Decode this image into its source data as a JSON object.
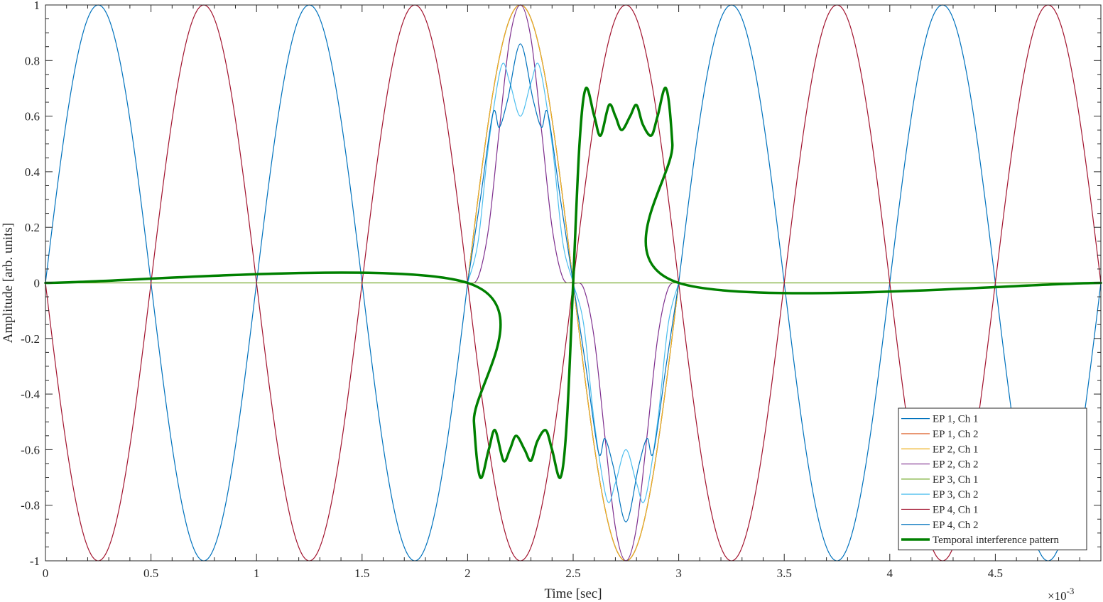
{
  "chart_data": {
    "type": "line",
    "title": "",
    "xlabel": "Time [sec]",
    "ylabel": "Amplitude [arb. units]",
    "x_exponent_label": "×10",
    "x_exponent_power": "-3",
    "xlim": [
      0,
      5
    ],
    "ylim": [
      -1,
      1
    ],
    "xticks": [
      0,
      0.5,
      1,
      1.5,
      2,
      2.5,
      3,
      3.5,
      4,
      4.5
    ],
    "xtick_labels": [
      "0",
      "0.5",
      "1",
      "1.5",
      "2",
      "2.5",
      "3",
      "3.5",
      "4",
      "4.5"
    ],
    "yticks": [
      -1,
      -0.8,
      -0.6,
      -0.4,
      -0.2,
      0,
      0.2,
      0.4,
      0.6,
      0.8,
      1
    ],
    "ytick_labels": [
      "-1",
      "-0.8",
      "-0.6",
      "-0.4",
      "-0.2",
      "0",
      "0.2",
      "0.4",
      "0.6",
      "0.8",
      "1"
    ],
    "grid": false,
    "legend_position": "bottom-right",
    "x_unit_scale": 0.001,
    "series": [
      {
        "name": "EP 1, Ch 1",
        "color": "#0072BD",
        "width": 1.2,
        "description": "sin(2*pi*1000*t)",
        "points": [
          [
            0,
            0
          ],
          [
            0.25,
            1
          ],
          [
            0.5,
            0
          ],
          [
            0.75,
            -1
          ],
          [
            1,
            0
          ],
          [
            1.25,
            1
          ],
          [
            1.5,
            0
          ],
          [
            1.75,
            -1
          ],
          [
            2,
            0
          ],
          [
            2.25,
            1
          ],
          [
            2.5,
            0
          ],
          [
            2.75,
            -1
          ],
          [
            3,
            0
          ],
          [
            3.25,
            1
          ],
          [
            3.5,
            0
          ],
          [
            3.75,
            -1
          ],
          [
            4,
            0
          ],
          [
            4.25,
            1
          ],
          [
            4.5,
            0
          ],
          [
            4.75,
            -1
          ],
          [
            5,
            0
          ]
        ]
      },
      {
        "name": "EP 1, Ch 2",
        "color": "#D95319",
        "width": 1.2,
        "points": [
          [
            2,
            0
          ],
          [
            2.25,
            1
          ],
          [
            2.5,
            0
          ],
          [
            2.75,
            -1
          ],
          [
            3,
            0
          ]
        ]
      },
      {
        "name": "EP 2, Ch 1",
        "color": "#EDB120",
        "width": 1.2,
        "points": [
          [
            2,
            0
          ],
          [
            2.25,
            1
          ],
          [
            2.5,
            0
          ],
          [
            2.75,
            -1
          ],
          [
            3,
            0
          ]
        ]
      },
      {
        "name": "EP 2, Ch 2",
        "color": "#7E2F8E",
        "width": 1.2,
        "points": [
          [
            2,
            0
          ],
          [
            2.05,
            0.02
          ],
          [
            2.1,
            0.2
          ],
          [
            2.15,
            0.55
          ],
          [
            2.2,
            0.88
          ],
          [
            2.25,
            1
          ],
          [
            2.3,
            0.88
          ],
          [
            2.35,
            0.55
          ],
          [
            2.4,
            0.2
          ],
          [
            2.45,
            0.02
          ],
          [
            2.5,
            0
          ],
          [
            2.55,
            -0.02
          ],
          [
            2.6,
            -0.2
          ],
          [
            2.65,
            -0.55
          ],
          [
            2.7,
            -0.88
          ],
          [
            2.75,
            -1
          ],
          [
            2.8,
            -0.88
          ],
          [
            2.85,
            -0.55
          ],
          [
            2.9,
            -0.2
          ],
          [
            2.95,
            -0.02
          ],
          [
            3,
            0
          ]
        ]
      },
      {
        "name": "EP 3, Ch 1",
        "color": "#77AC30",
        "width": 1.2,
        "points": [
          [
            0,
            0
          ],
          [
            5,
            0
          ]
        ]
      },
      {
        "name": "EP 3, Ch 2",
        "color": "#4DBEEE",
        "width": 1.2,
        "points": [
          [
            2,
            0
          ],
          [
            2.05,
            0.15
          ],
          [
            2.1,
            0.5
          ],
          [
            2.16,
            0.78
          ],
          [
            2.2,
            0.72
          ],
          [
            2.25,
            0.6
          ],
          [
            2.3,
            0.72
          ],
          [
            2.34,
            0.78
          ],
          [
            2.4,
            0.5
          ],
          [
            2.45,
            0.15
          ],
          [
            2.5,
            0
          ],
          [
            2.55,
            -0.15
          ],
          [
            2.6,
            -0.5
          ],
          [
            2.66,
            -0.78
          ],
          [
            2.7,
            -0.72
          ],
          [
            2.75,
            -0.6
          ],
          [
            2.8,
            -0.72
          ],
          [
            2.84,
            -0.78
          ],
          [
            2.9,
            -0.5
          ],
          [
            2.95,
            -0.15
          ],
          [
            3,
            0
          ]
        ]
      },
      {
        "name": "EP 4, Ch 1",
        "color": "#A2142F",
        "width": 1.2,
        "description": "-sin(2*pi*1000*t)",
        "points": [
          [
            0,
            0
          ],
          [
            0.25,
            -1
          ],
          [
            0.5,
            0
          ],
          [
            0.75,
            1
          ],
          [
            1,
            0
          ],
          [
            1.25,
            -1
          ],
          [
            1.5,
            0
          ],
          [
            1.75,
            1
          ],
          [
            2,
            0
          ],
          [
            2.25,
            -1
          ],
          [
            2.5,
            0
          ],
          [
            2.75,
            1
          ],
          [
            3,
            0
          ],
          [
            3.25,
            -1
          ],
          [
            3.5,
            0
          ],
          [
            3.75,
            1
          ],
          [
            4,
            0
          ],
          [
            4.25,
            -1
          ],
          [
            4.5,
            0
          ],
          [
            4.75,
            1
          ],
          [
            5,
            0
          ]
        ]
      },
      {
        "name": "EP 4, Ch 2",
        "color": "#0072BD",
        "width": 1.2,
        "points": [
          [
            2,
            0
          ],
          [
            2.06,
            0.3
          ],
          [
            2.12,
            0.61
          ],
          [
            2.15,
            0.56
          ],
          [
            2.19,
            0.66
          ],
          [
            2.25,
            0.86
          ],
          [
            2.31,
            0.66
          ],
          [
            2.35,
            0.56
          ],
          [
            2.38,
            0.61
          ],
          [
            2.44,
            0.3
          ],
          [
            2.5,
            0
          ],
          [
            2.56,
            -0.3
          ],
          [
            2.62,
            -0.61
          ],
          [
            2.65,
            -0.56
          ],
          [
            2.69,
            -0.66
          ],
          [
            2.75,
            -0.86
          ],
          [
            2.81,
            -0.66
          ],
          [
            2.85,
            -0.56
          ],
          [
            2.88,
            -0.61
          ],
          [
            2.94,
            -0.3
          ],
          [
            3,
            0
          ]
        ]
      },
      {
        "name": "Temporal interference pattern",
        "color": "#008000",
        "width": 3.5,
        "points": [
          [
            0,
            0
          ],
          [
            2,
            0
          ],
          [
            2.03,
            -0.5
          ],
          [
            2.06,
            -0.7
          ],
          [
            2.1,
            -0.6
          ],
          [
            2.13,
            -0.53
          ],
          [
            2.17,
            -0.64
          ],
          [
            2.2,
            -0.6
          ],
          [
            2.23,
            -0.55
          ],
          [
            2.27,
            -0.6
          ],
          [
            2.3,
            -0.64
          ],
          [
            2.33,
            -0.57
          ],
          [
            2.37,
            -0.53
          ],
          [
            2.4,
            -0.6
          ],
          [
            2.44,
            -0.7
          ],
          [
            2.47,
            -0.5
          ],
          [
            2.5,
            0
          ],
          [
            2.53,
            0.5
          ],
          [
            2.56,
            0.7
          ],
          [
            2.6,
            0.6
          ],
          [
            2.63,
            0.53
          ],
          [
            2.67,
            0.64
          ],
          [
            2.7,
            0.6
          ],
          [
            2.73,
            0.55
          ],
          [
            2.77,
            0.6
          ],
          [
            2.8,
            0.64
          ],
          [
            2.83,
            0.57
          ],
          [
            2.87,
            0.53
          ],
          [
            2.9,
            0.6
          ],
          [
            2.94,
            0.7
          ],
          [
            2.97,
            0.5
          ],
          [
            3,
            0
          ],
          [
            5,
            0
          ]
        ]
      }
    ]
  }
}
